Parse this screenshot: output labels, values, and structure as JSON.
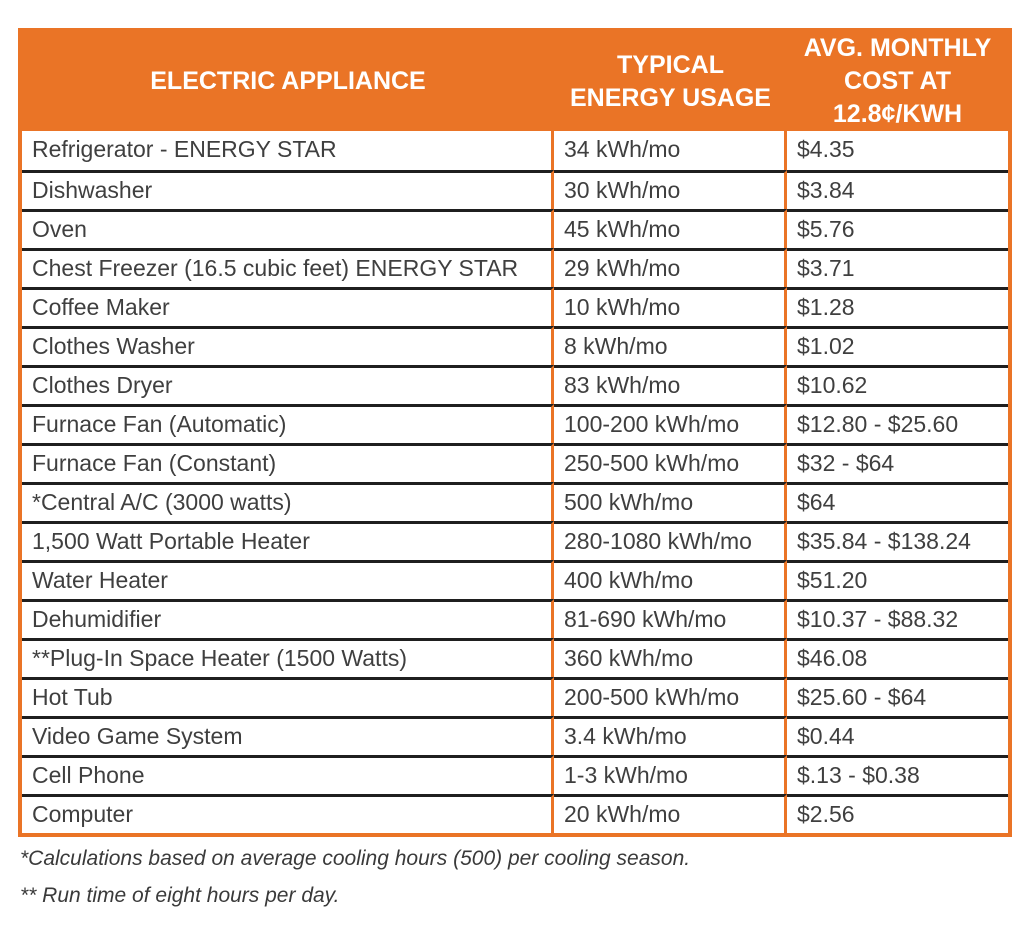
{
  "colors": {
    "accent_orange": "#EA7426",
    "row_divider": "#1F1F1F",
    "body_text": "#3F3F3F",
    "header_text": "#FFFFFF"
  },
  "table": {
    "headers": [
      {
        "label": "ELECTRIC APPLIANCE"
      },
      {
        "label": "TYPICAL\nENERGY USAGE"
      },
      {
        "label": "AVG. MONTHLY\nCOST AT\n12.8¢/KWH"
      }
    ]
  },
  "footnotes": [
    "*Calculations based on average cooling hours (500) per cooling season.",
    "** Run time of eight hours per day."
  ],
  "chart_data": {
    "type": "table",
    "columns": [
      "ELECTRIC APPLIANCE",
      "TYPICAL ENERGY USAGE",
      "AVG. MONTHLY COST AT 12.8¢/KWH"
    ],
    "rows": [
      {
        "appliance": "Refrigerator - ENERGY STAR",
        "usage": "34 kWh/mo",
        "cost": "$4.35"
      },
      {
        "appliance": "Dishwasher",
        "usage": "30 kWh/mo",
        "cost": "$3.84"
      },
      {
        "appliance": "Oven",
        "usage": "45 kWh/mo",
        "cost": "$5.76"
      },
      {
        "appliance": "Chest Freezer (16.5 cubic feet) ENERGY STAR",
        "usage": "29 kWh/mo",
        "cost": "$3.71"
      },
      {
        "appliance": "Coffee Maker",
        "usage": "10 kWh/mo",
        "cost": "$1.28"
      },
      {
        "appliance": "Clothes Washer",
        "usage": "8 kWh/mo",
        "cost": "$1.02"
      },
      {
        "appliance": "Clothes Dryer",
        "usage": "83 kWh/mo",
        "cost": "$10.62"
      },
      {
        "appliance": "Furnace Fan (Automatic)",
        "usage": "100-200 kWh/mo",
        "cost": "$12.80 - $25.60"
      },
      {
        "appliance": "Furnace Fan (Constant)",
        "usage": "250-500 kWh/mo",
        "cost": "$32 - $64"
      },
      {
        "appliance": "*Central A/C (3000 watts)",
        "usage": "500 kWh/mo",
        "cost": "$64"
      },
      {
        "appliance": "1,500 Watt Portable Heater",
        "usage": "280-1080 kWh/mo",
        "cost": "$35.84 - $138.24"
      },
      {
        "appliance": "Water Heater",
        "usage": "400 kWh/mo",
        "cost": "$51.20"
      },
      {
        "appliance": "Dehumidifier",
        "usage": "81-690 kWh/mo",
        "cost": "$10.37 - $88.32"
      },
      {
        "appliance": "**Plug-In Space Heater (1500 Watts)",
        "usage": "360 kWh/mo",
        "cost": "$46.08"
      },
      {
        "appliance": "Hot Tub",
        "usage": "200-500 kWh/mo",
        "cost": "$25.60 - $64"
      },
      {
        "appliance": "Video Game System",
        "usage": "3.4 kWh/mo",
        "cost": "$0.44"
      },
      {
        "appliance": "Cell Phone",
        "usage": "1-3 kWh/mo",
        "cost": "$.13 - $0.38"
      },
      {
        "appliance": "Computer",
        "usage": "20 kWh/mo",
        "cost": "$2.56"
      }
    ]
  }
}
